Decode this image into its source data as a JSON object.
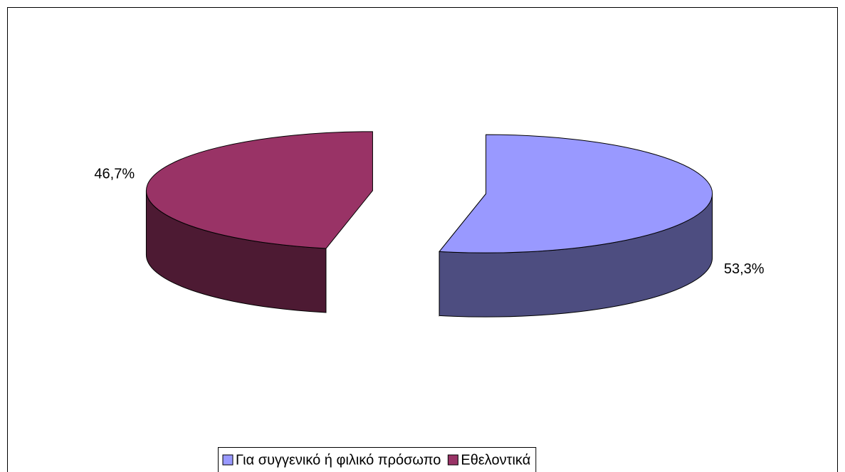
{
  "chart_data": {
    "type": "pie",
    "categories": [
      "Για συγγενικό ή φιλικό πρόσωπο",
      "Εθελοντικά"
    ],
    "values": [
      53.3,
      46.7
    ],
    "value_labels": [
      "53,3%",
      "46,7%"
    ],
    "colors": [
      "#9999ff",
      "#993366"
    ],
    "side_colors": [
      "#4d4d80",
      "#4d1a33"
    ],
    "legend": "bottom"
  }
}
